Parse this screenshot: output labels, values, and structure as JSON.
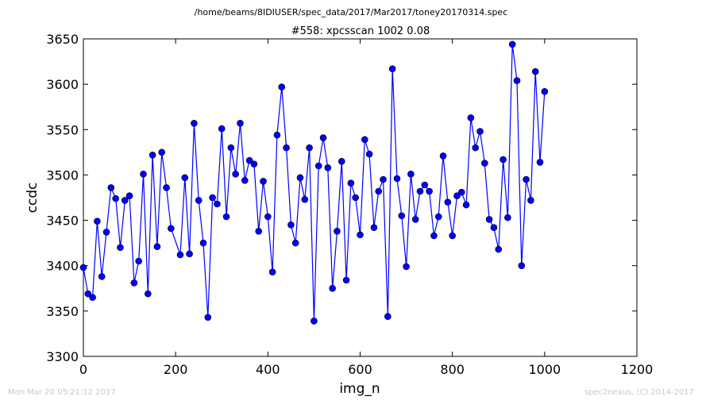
{
  "header": {
    "file_path": "/home/beams/8IDIUSER/spec_data/2017/Mar2017/toney20170314.spec"
  },
  "footer": {
    "timestamp": "Mon Mar 20 05:21:12 2017",
    "credit": "spec2nexus, (C) 2014-2017"
  },
  "colors": {
    "series": "#0000ff",
    "marker_fill": "#0000ff",
    "marker_edge": "#000000"
  },
  "chart_data": {
    "type": "line",
    "title": "#558: xpcsscan 1002 0.08",
    "xlabel": "img_n",
    "ylabel": "ccdc",
    "xlim": [
      0,
      1200
    ],
    "ylim": [
      3300,
      3650
    ],
    "xticks": [
      0,
      200,
      400,
      600,
      800,
      1000,
      1200
    ],
    "yticks": [
      3300,
      3350,
      3400,
      3450,
      3500,
      3550,
      3600,
      3650
    ],
    "grid": false,
    "markers": true,
    "series": [
      {
        "x": [
          0,
          10,
          20,
          30,
          40,
          50,
          60,
          70,
          80,
          90,
          100,
          110,
          120,
          130,
          140,
          150,
          160,
          170,
          180,
          190,
          210,
          220,
          230,
          240,
          250,
          260,
          270,
          280,
          290,
          300,
          310,
          320,
          330,
          340,
          350,
          360,
          370,
          380,
          390,
          400,
          410,
          420,
          430,
          440,
          450,
          460,
          470,
          480,
          490,
          500,
          510,
          520,
          530,
          540,
          550,
          560,
          570,
          580,
          590,
          600,
          610,
          620,
          630,
          640,
          650,
          660,
          670,
          680,
          690,
          700,
          710,
          720,
          730,
          740,
          750,
          760,
          770,
          780,
          790,
          800,
          810,
          820,
          830,
          840,
          850,
          860,
          870,
          880,
          890,
          900,
          910,
          920,
          930,
          940,
          950,
          960,
          970,
          980,
          990,
          1000
        ],
        "y": [
          3398,
          3369,
          3365,
          3449,
          3388,
          3437,
          3486,
          3474,
          3420,
          3472,
          3477,
          3381,
          3405,
          3501,
          3369,
          3522,
          3421,
          3525,
          3486,
          3441,
          3412,
          3497,
          3413,
          3557,
          3472,
          3425,
          3343,
          3475,
          3468,
          3551,
          3454,
          3530,
          3501,
          3557,
          3494,
          3516,
          3512,
          3438,
          3493,
          3454,
          3393,
          3544,
          3597,
          3530,
          3445,
          3425,
          3497,
          3473,
          3530,
          3339,
          3510,
          3541,
          3508,
          3375,
          3438,
          3515,
          3384,
          3491,
          3475,
          3434,
          3539,
          3523,
          3442,
          3482,
          3495,
          3344,
          3617,
          3496,
          3455,
          3399,
          3501,
          3451,
          3482,
          3489,
          3482,
          3433,
          3454,
          3521,
          3470,
          3433,
          3477,
          3481,
          3467,
          3563,
          3530,
          3548,
          3513,
          3451,
          3442,
          3418,
          3517,
          3453,
          3644,
          3604,
          3400,
          3495,
          3472,
          3614,
          3514,
          3592
        ]
      }
    ]
  }
}
